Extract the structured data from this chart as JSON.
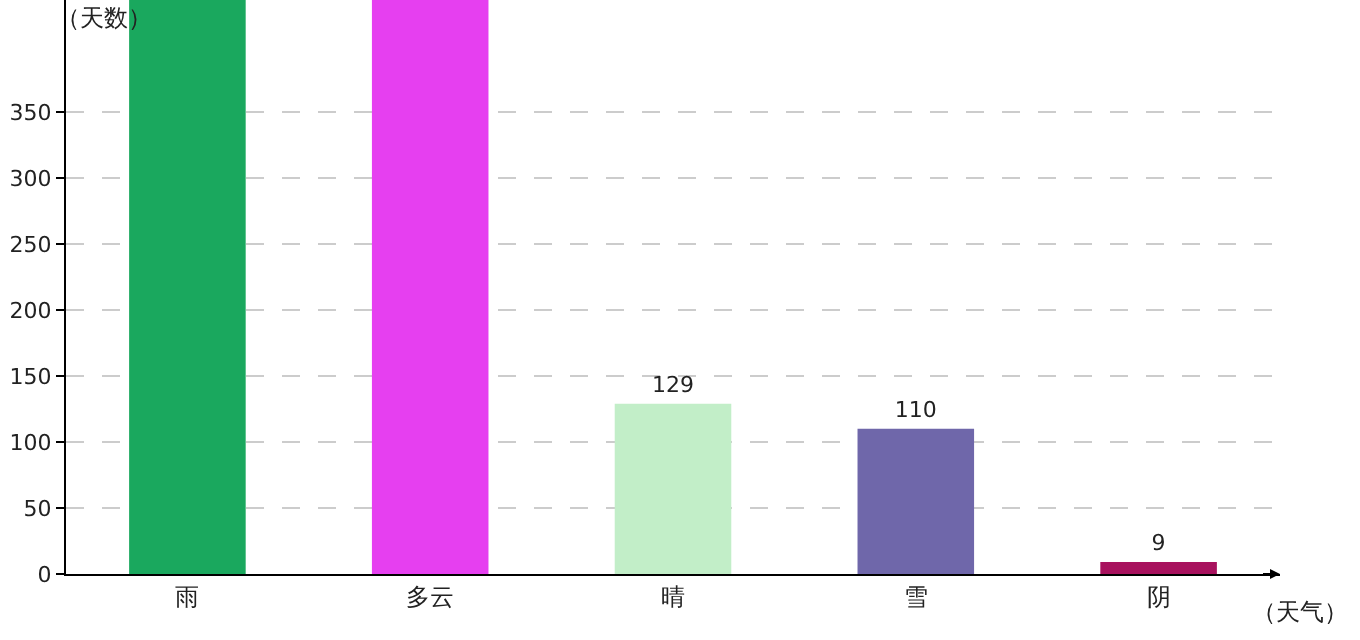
{
  "chart_data": {
    "type": "bar",
    "xlabel": "（天气）",
    "ylabel": "（天数）",
    "categories": [
      "雨",
      "多云",
      "晴",
      "雪",
      "阴"
    ],
    "values": [
      435,
      435,
      129,
      110,
      9
    ],
    "colors": [
      "#1aa85e",
      "#e63ff0",
      "#c2eec8",
      "#6f67aa",
      "#a8125e"
    ],
    "value_labels": [
      null,
      null,
      "129",
      "110",
      "9"
    ],
    "ylim": [
      0,
      435
    ],
    "yticks": [
      0,
      50,
      100,
      150,
      200,
      250,
      300,
      350
    ],
    "grid": "y"
  }
}
